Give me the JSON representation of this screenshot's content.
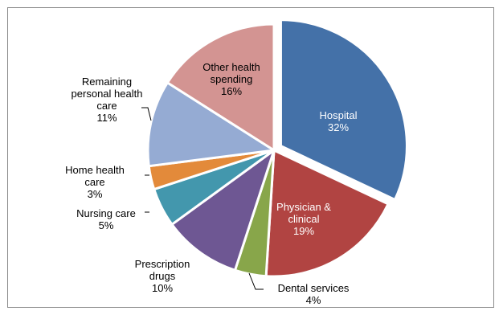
{
  "chart_data": {
    "type": "pie",
    "title": "",
    "slices": [
      {
        "label_lines": [
          "Hospital"
        ],
        "value": 32,
        "value_label": "32%",
        "color": "#4471a8",
        "label_inside": true,
        "label_color": "#ffffff"
      },
      {
        "label_lines": [
          "Physician &",
          "clinical"
        ],
        "value": 19,
        "value_label": "19%",
        "color": "#b14442",
        "label_inside": true,
        "label_color": "#ffffff"
      },
      {
        "label_lines": [
          "Dental services"
        ],
        "value": 4,
        "value_label": "4%",
        "color": "#88a64a",
        "label_inside": false,
        "label_color": "#000000"
      },
      {
        "label_lines": [
          "Prescription",
          "drugs"
        ],
        "value": 10,
        "value_label": "10%",
        "color": "#6e5793",
        "label_inside": false,
        "label_color": "#000000"
      },
      {
        "label_lines": [
          "Nursing care"
        ],
        "value": 5,
        "value_label": "5%",
        "color": "#4397ad",
        "label_inside": false,
        "label_color": "#000000"
      },
      {
        "label_lines": [
          "Home health",
          "care"
        ],
        "value": 3,
        "value_label": "3%",
        "color": "#e38a3a",
        "label_inside": false,
        "label_color": "#000000"
      },
      {
        "label_lines": [
          "Remaining",
          "personal health",
          "care"
        ],
        "value": 11,
        "value_label": "11%",
        "color": "#95abd3",
        "label_inside": false,
        "label_color": "#000000"
      },
      {
        "label_lines": [
          "Other health",
          "spending"
        ],
        "value": 16,
        "value_label": "16%",
        "color": "#d39492",
        "label_inside": true,
        "label_color": "#000000"
      }
    ],
    "exploded_slice": "Hospital",
    "start": "12 o'clock",
    "direction": "clockwise",
    "legend": "none"
  }
}
